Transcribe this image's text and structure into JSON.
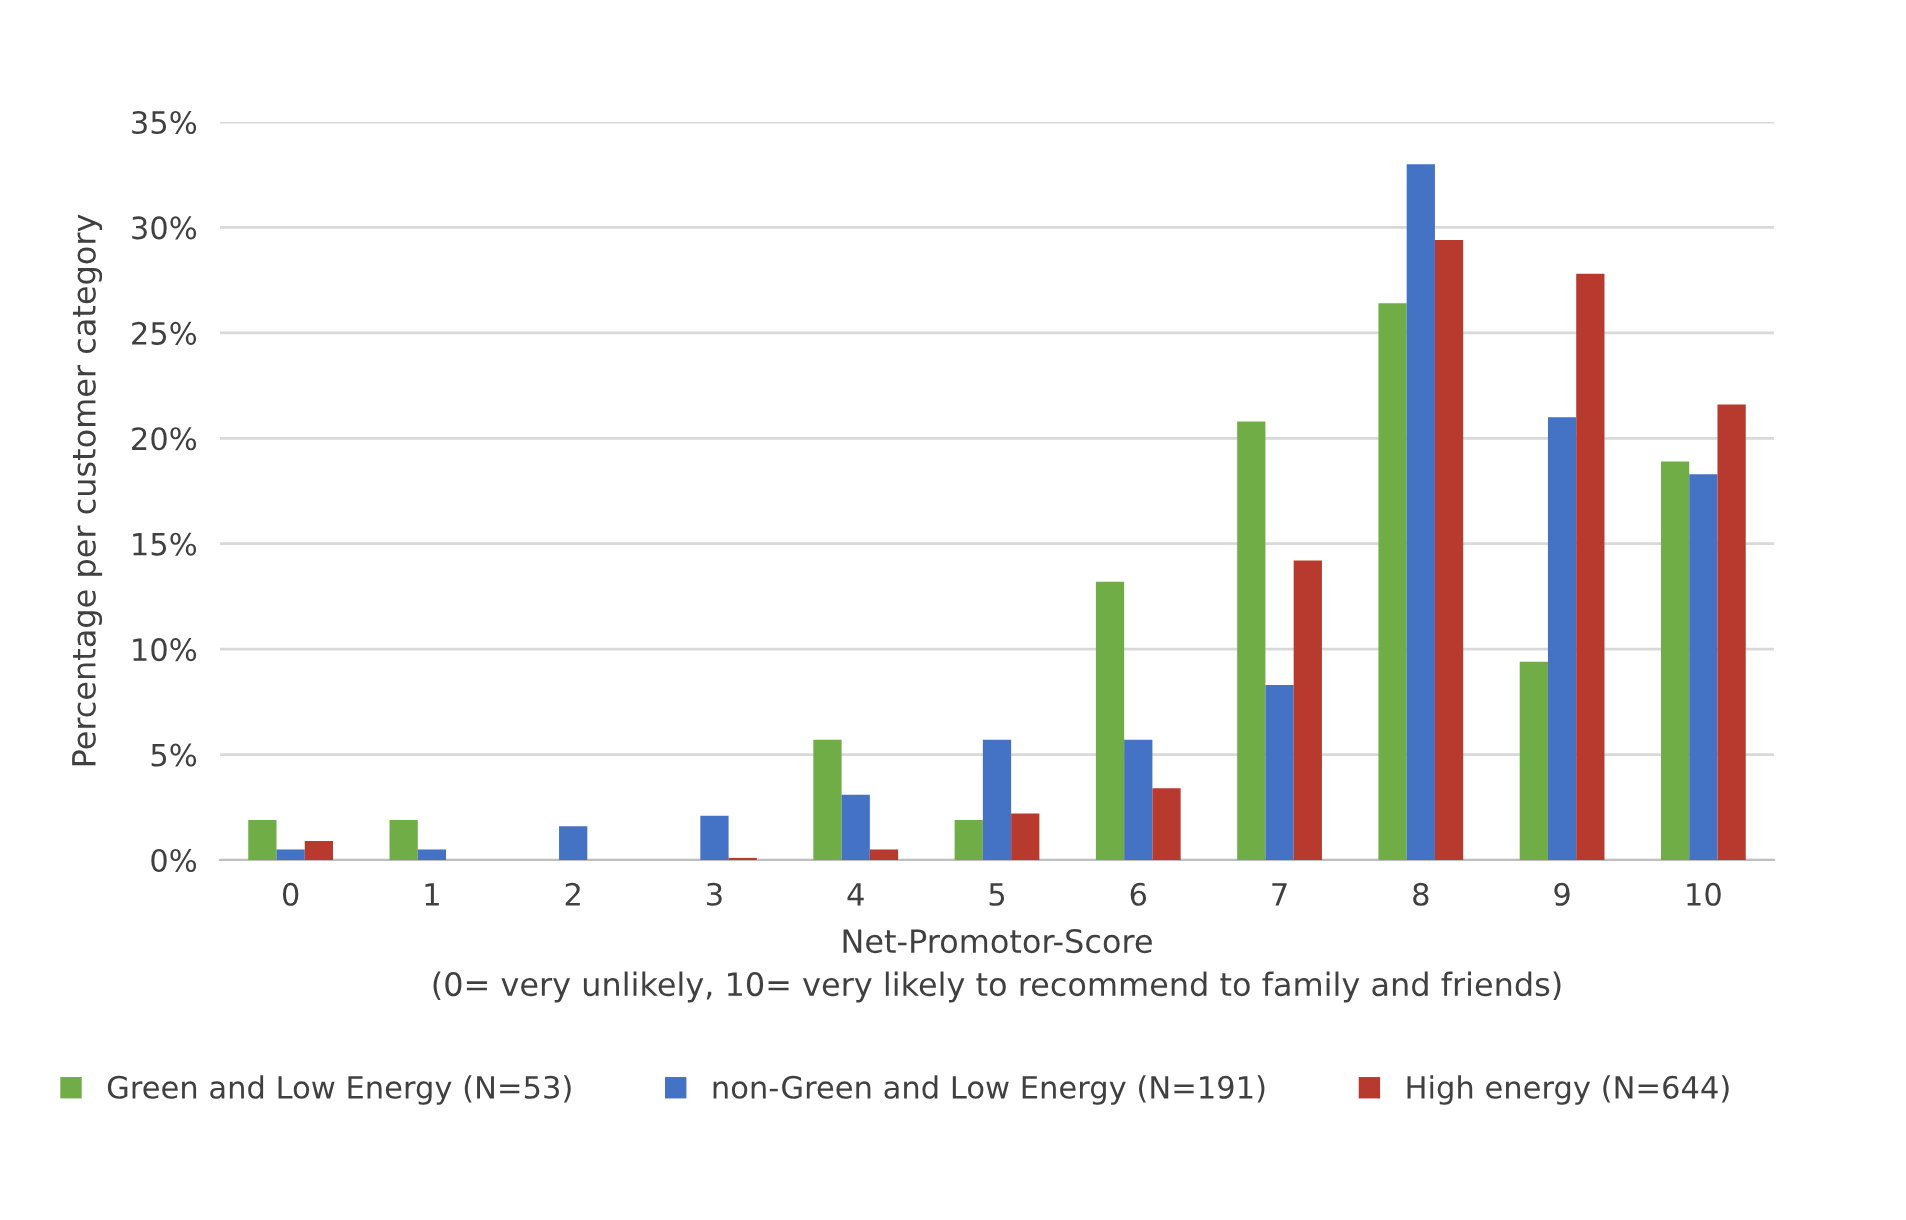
{
  "chart_data": {
    "type": "bar",
    "xlabel": "Net-Promotor-Score\n(0= very unlikely, 10= very likely to recommend to family and friends)",
    "ylabel": "Percentage per customer category",
    "categories": [
      "0",
      "1",
      "2",
      "3",
      "4",
      "5",
      "6",
      "7",
      "8",
      "9",
      "10"
    ],
    "series": [
      {
        "name": "Green and Low Energy (N=53)",
        "color": "#70ad47",
        "values": [
          1.9,
          1.9,
          0,
          0,
          5.7,
          1.9,
          13.2,
          20.8,
          26.4,
          9.4,
          18.9
        ]
      },
      {
        "name": "non-Green and Low Energy (N=191)",
        "color": "#4472c4",
        "values": [
          0.5,
          0.5,
          1.6,
          2.1,
          3.1,
          5.7,
          5.7,
          8.3,
          33.0,
          21.0,
          18.3
        ]
      },
      {
        "name": "High energy (N=644)",
        "color": "#b83a2e",
        "values": [
          0.9,
          0,
          0,
          0.1,
          0.5,
          2.2,
          3.4,
          14.2,
          29.4,
          27.8,
          21.6
        ]
      }
    ],
    "ylim": [
      0,
      35
    ],
    "yticks": [
      {
        "value": 0,
        "label": "0%"
      },
      {
        "value": 5,
        "label": "5%"
      },
      {
        "value": 10,
        "label": "10%"
      },
      {
        "value": 15,
        "label": "15%"
      },
      {
        "value": 20,
        "label": "20%"
      },
      {
        "value": 25,
        "label": "25%"
      },
      {
        "value": 30,
        "label": "30%"
      },
      {
        "value": 35,
        "label": "35%"
      }
    ],
    "grid": "y",
    "legend": "bottom"
  }
}
